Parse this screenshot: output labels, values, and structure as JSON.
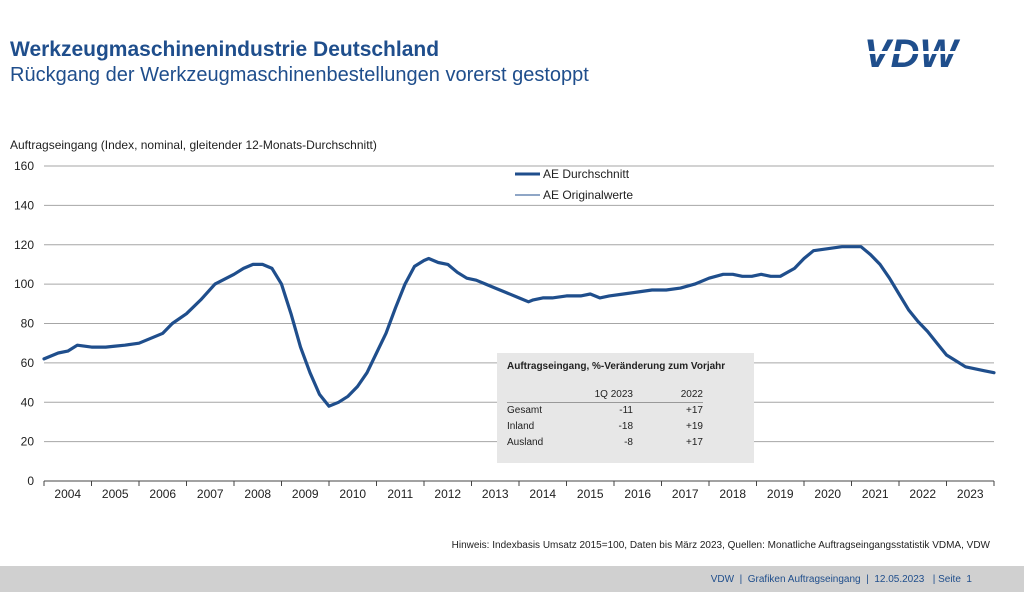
{
  "header": {
    "title": "Werkzeugmaschinenindustrie Deutschland",
    "subtitle": "Rückgang der Werkzeugmaschinenbestellungen vorerst gestoppt",
    "logo_text": "VDW"
  },
  "colors": {
    "primary": "#1f4e8c",
    "line": "#1f4e8c",
    "grid": "#a6a6a6",
    "table_bg": "#e7e7e7",
    "footer_bg": "#d0d0d0"
  },
  "chart_data": {
    "type": "line",
    "ylabel": "Auftragseingang (Index, nominal, gleitender 12-Monats-Durchschnitt)",
    "ylim": [
      0,
      160
    ],
    "yticks": [
      0,
      20,
      40,
      60,
      80,
      100,
      120,
      140,
      160
    ],
    "xlim": [
      2004.0,
      2024.0
    ],
    "x_tick_labels": [
      "2004",
      "2005",
      "2006",
      "2007",
      "2008",
      "2009",
      "2010",
      "2011",
      "2012",
      "2013",
      "2014",
      "2015",
      "2016",
      "2017",
      "2018",
      "2019",
      "2020",
      "2021",
      "2022",
      "2023"
    ],
    "grid": true,
    "legend_position": "top-center",
    "series": [
      {
        "name": "AE Durchschnitt",
        "points": [
          [
            2004.0,
            62
          ],
          [
            2004.3,
            65
          ],
          [
            2004.5,
            66
          ],
          [
            2004.7,
            69
          ],
          [
            2005.0,
            68
          ],
          [
            2005.3,
            68
          ],
          [
            2005.5,
            68.5
          ],
          [
            2005.7,
            69
          ],
          [
            2006.0,
            70
          ],
          [
            2006.3,
            73
          ],
          [
            2006.5,
            75
          ],
          [
            2006.7,
            80
          ],
          [
            2007.0,
            85
          ],
          [
            2007.3,
            92
          ],
          [
            2007.6,
            100
          ],
          [
            2008.0,
            105
          ],
          [
            2008.2,
            108
          ],
          [
            2008.4,
            110
          ],
          [
            2008.6,
            110
          ],
          [
            2008.8,
            108
          ],
          [
            2009.0,
            100
          ],
          [
            2009.2,
            85
          ],
          [
            2009.4,
            68
          ],
          [
            2009.6,
            55
          ],
          [
            2009.8,
            44
          ],
          [
            2010.0,
            38
          ],
          [
            2010.2,
            40
          ],
          [
            2010.4,
            43
          ],
          [
            2010.6,
            48
          ],
          [
            2010.8,
            55
          ],
          [
            2011.0,
            65
          ],
          [
            2011.2,
            75
          ],
          [
            2011.4,
            88
          ],
          [
            2011.6,
            100
          ],
          [
            2011.8,
            109
          ],
          [
            2012.0,
            112
          ],
          [
            2012.1,
            113
          ],
          [
            2012.3,
            111
          ],
          [
            2012.5,
            110
          ],
          [
            2012.7,
            106
          ],
          [
            2012.9,
            103
          ],
          [
            2013.1,
            102
          ],
          [
            2013.3,
            100
          ],
          [
            2013.5,
            98
          ],
          [
            2013.7,
            96
          ],
          [
            2014.0,
            93
          ],
          [
            2014.2,
            91
          ],
          [
            2014.3,
            92
          ],
          [
            2014.5,
            93
          ],
          [
            2014.7,
            93
          ],
          [
            2015.0,
            94
          ],
          [
            2015.3,
            94
          ],
          [
            2015.5,
            95
          ],
          [
            2015.7,
            93
          ],
          [
            2015.9,
            94
          ],
          [
            2016.2,
            95
          ],
          [
            2016.5,
            96
          ],
          [
            2016.8,
            97
          ],
          [
            2017.1,
            97
          ],
          [
            2017.4,
            98
          ],
          [
            2017.7,
            100
          ],
          [
            2018.0,
            103
          ],
          [
            2018.3,
            105
          ],
          [
            2018.5,
            105
          ],
          [
            2018.7,
            104
          ],
          [
            2018.9,
            104
          ],
          [
            2019.1,
            105
          ],
          [
            2019.3,
            104
          ],
          [
            2019.5,
            104
          ],
          [
            2019.8,
            108
          ],
          [
            2020.0,
            113
          ],
          [
            2020.2,
            117
          ],
          [
            2020.5,
            118
          ],
          [
            2020.8,
            119
          ],
          [
            2021.0,
            119
          ],
          [
            2021.2,
            119
          ],
          [
            2021.4,
            115
          ],
          [
            2021.6,
            110
          ],
          [
            2021.8,
            103
          ],
          [
            2022.0,
            95
          ],
          [
            2022.2,
            87
          ],
          [
            2022.4,
            81
          ],
          [
            2022.6,
            76
          ],
          [
            2022.8,
            70
          ],
          [
            2023.0,
            64
          ],
          [
            2023.2,
            61
          ],
          [
            2023.4,
            58
          ],
          [
            2023.6,
            57
          ],
          [
            2023.8,
            56
          ],
          [
            2024.0,
            55
          ]
        ]
      },
      {
        "name": "AE Originalwerte",
        "points": []
      }
    ],
    "x_labeled_positions_note": ""
  },
  "table": {
    "title": "Auftragseingang, %-Veränderung zum Vorjahr",
    "headers": [
      "",
      "1Q 2023",
      "2022"
    ],
    "rows": [
      {
        "label": "Gesamt",
        "q": "-11",
        "y": "+17"
      },
      {
        "label": "Inland",
        "q": "-18",
        "y": "+19"
      },
      {
        "label": "Ausland",
        "q": "-8",
        "y": "+17"
      }
    ]
  },
  "note": "Hinweis: Indexbasis Umsatz 2015=100, Daten bis März 2023, Quellen: Monatliche Auftragseingangsstatistik VDMA, VDW",
  "footer": {
    "text": "VDW  |  Grafiken Auftragseingang  |  12.05.2023   | Seite  1"
  }
}
